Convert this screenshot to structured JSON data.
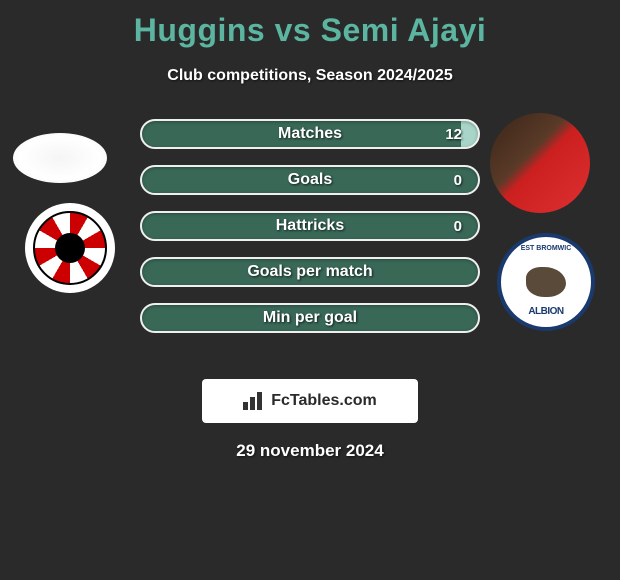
{
  "title": {
    "player1": "Huggins",
    "vs": "vs",
    "player2": "Semi Ajayi"
  },
  "subtitle": "Club competitions, Season 2024/2025",
  "stats": [
    {
      "label": "Matches",
      "value": "12",
      "filled": true
    },
    {
      "label": "Goals",
      "value": "0",
      "filled": false
    },
    {
      "label": "Hattricks",
      "value": "0",
      "filled": false
    },
    {
      "label": "Goals per match",
      "value": "",
      "filled": false
    },
    {
      "label": "Min per goal",
      "value": "",
      "filled": false
    }
  ],
  "footer": {
    "brand": "FcTables.com"
  },
  "date": "29 november 2024",
  "colors": {
    "background": "#2a2a2a",
    "accent": "#5bb5a0",
    "bar_bg": "#396857",
    "bar_border": "#efefef",
    "text_white": "#ffffff",
    "badge_bg": "#ffffff"
  },
  "clubs": {
    "left": "Sunderland",
    "right": "West Bromwich Albion"
  }
}
